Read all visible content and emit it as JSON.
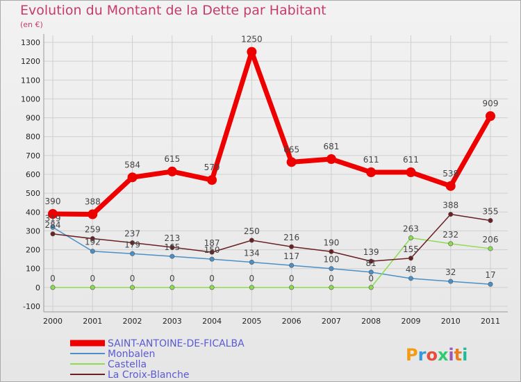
{
  "title": "Evolution du Montant de la Dette par Habitant",
  "subtitle": "(en €)",
  "brand": "Proxiti",
  "colors": {
    "title": "#c83a6a",
    "grid": "#cfcfcf",
    "legend_text": "#5a5ad2"
  },
  "chart_data": {
    "type": "line",
    "title": "Evolution du Montant de la Dette par Habitant",
    "ylabel": "(en €)",
    "xlabel": "",
    "x": [
      "2000",
      "2001",
      "2002",
      "2003",
      "2004",
      "2005",
      "2006",
      "2007",
      "2008",
      "2009",
      "2010",
      "2011"
    ],
    "yticks": [
      -100,
      0,
      100,
      200,
      300,
      400,
      500,
      600,
      700,
      800,
      900,
      1000,
      1100,
      1200,
      1300
    ],
    "ylim": [
      -100,
      1300
    ],
    "grid": true,
    "legend_position": "bottom-left",
    "series": [
      {
        "name": "SAINT-ANTOINE-DE-FICALBA",
        "color": "#ee0000",
        "values": [
          390,
          388,
          584,
          615,
          570,
          1250,
          665,
          681,
          611,
          611,
          538,
          909
        ]
      },
      {
        "name": "Monbalen",
        "color": "#4a90c8",
        "values": [
          319,
          192,
          179,
          165,
          150,
          134,
          117,
          100,
          81,
          48,
          32,
          17
        ]
      },
      {
        "name": "Castella",
        "color": "#8ddc50",
        "values": [
          0,
          0,
          0,
          0,
          0,
          0,
          0,
          0,
          0,
          263,
          232,
          206
        ]
      },
      {
        "name": "La Croix-Blanche",
        "color": "#6a1f22",
        "values": [
          284,
          259,
          237,
          213,
          187,
          250,
          216,
          190,
          139,
          155,
          388,
          355
        ]
      }
    ]
  }
}
